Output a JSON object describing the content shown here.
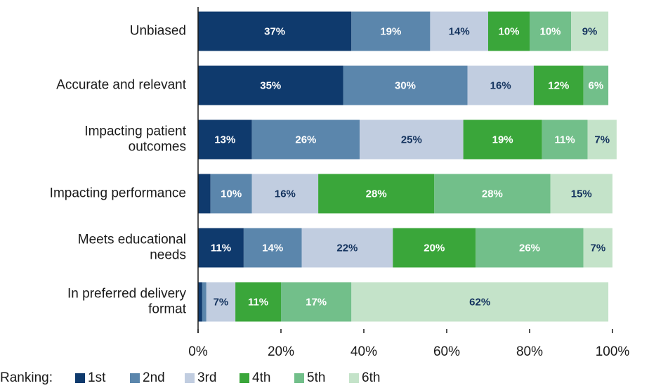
{
  "chart_data": {
    "type": "stacked_bar_horizontal",
    "categories": [
      "Unbiased",
      "Accurate and relevant",
      "Impacting patient outcomes",
      "Impacting performance",
      "Meets educational needs",
      "In preferred delivery format"
    ],
    "legend_title": "Ranking:",
    "series": [
      {
        "name": "1st",
        "color": "#0f3a6d",
        "values": [
          37,
          35,
          13,
          3,
          11,
          1
        ],
        "value_labels": [
          "37%",
          "35%",
          "13%",
          null,
          "11%",
          null
        ]
      },
      {
        "name": "2nd",
        "color": "#5b86ac",
        "values": [
          19,
          30,
          26,
          10,
          14,
          1
        ],
        "value_labels": [
          "19%",
          "30%",
          "26%",
          "10%",
          "14%",
          null
        ]
      },
      {
        "name": "3rd",
        "color": "#c1cde0",
        "values": [
          14,
          16,
          25,
          16,
          22,
          7
        ],
        "value_labels": [
          "14%",
          "16%",
          "25%",
          "16%",
          "22%",
          "7%"
        ]
      },
      {
        "name": "4th",
        "color": "#3aa63a",
        "values": [
          10,
          12,
          19,
          28,
          20,
          11
        ],
        "value_labels": [
          "10%",
          "12%",
          "19%",
          "28%",
          "20%",
          "11%"
        ]
      },
      {
        "name": "5th",
        "color": "#72bf8a",
        "values": [
          10,
          6,
          11,
          28,
          26,
          17
        ],
        "value_labels": [
          "10%",
          "6%",
          "11%",
          "28%",
          "26%",
          "17%"
        ]
      },
      {
        "name": "6th",
        "color": "#c4e3c9",
        "values": [
          9,
          0,
          7,
          15,
          7,
          62
        ],
        "value_labels": [
          "9%",
          null,
          "7%",
          "15%",
          "7%",
          "62%"
        ]
      }
    ],
    "xlim": [
      0,
      100
    ],
    "xticks": [
      {
        "value": 0,
        "label": "0%"
      },
      {
        "value": 20,
        "label": "20%"
      },
      {
        "value": 40,
        "label": "40%"
      },
      {
        "value": 60,
        "label": "60%"
      },
      {
        "value": 80,
        "label": "80%"
      },
      {
        "value": 100,
        "label": "100%"
      }
    ]
  }
}
